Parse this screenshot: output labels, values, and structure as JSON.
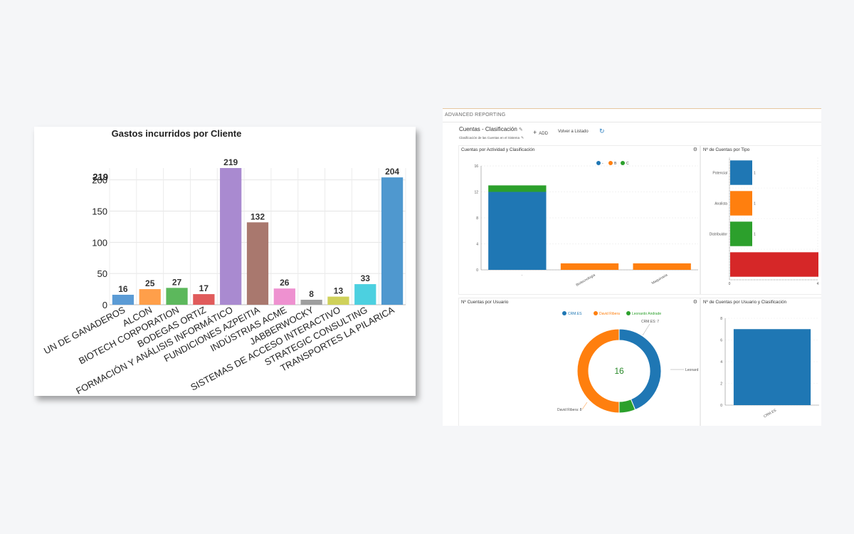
{
  "left_chart": {
    "chart_data": {
      "type": "bar",
      "title": "Gastos incurridos por Cliente",
      "categories": [
        "UN DE GANADEROS",
        "ALCON",
        "BIOTECH CORPORATION",
        "BODEGAS ORTIZ",
        "FORMACIÓN Y ANÁLISIS INFORMÁTICO",
        "FUNDICIONES AZPEITIA",
        "INDÚSTRIAS ACME",
        "JABBERWOCKY",
        "SISTEMAS DE ACCESO INTERACTIVO",
        "STRATEGIC CONSULTING",
        "TRANSPORTES LA PILARICA"
      ],
      "values": [
        16,
        25,
        27,
        17,
        219,
        132,
        26,
        8,
        13,
        33,
        204
      ],
      "value_labels": [
        "16",
        "25",
        "27",
        "17",
        "219",
        "132",
        "26",
        "8",
        "13",
        "33",
        "204"
      ],
      "colors": [
        "#5b9bd5",
        "#ff9f4a",
        "#5cb85c",
        "#e05b5b",
        "#a98ad0",
        "#a9786e",
        "#ee91d0",
        "#9e9e9e",
        "#cfd15a",
        "#4cd0e0",
        "#4f98cf"
      ],
      "yticks": [
        "0",
        "50",
        "100",
        "150",
        "200"
      ],
      "ytick_values": [
        0,
        50,
        100,
        150,
        200
      ],
      "ymax_label": "219",
      "ylim": [
        0,
        219
      ],
      "grid": true
    }
  },
  "dashboard": {
    "header": "ADVANCED REPORTING",
    "title": "Cuentas - Clasificación",
    "subtitle": "Clasificación de las Cuentas en el Sistema",
    "add_label": "ADD",
    "back_label": "Volver a Listado",
    "panel1": {
      "title": "Cuentas por Actividad y Clasificación",
      "chart_data": {
        "type": "bar",
        "categories": [
          "-",
          "Biotecnologia",
          "Maquinaria"
        ],
        "series": [
          {
            "name": "-",
            "color": "#1f77b4",
            "values": [
              12,
              0,
              0
            ]
          },
          {
            "name": "B",
            "color": "#ff7f0e",
            "values": [
              0,
              1,
              1
            ]
          },
          {
            "name": "C",
            "color": "#2ca02c",
            "values": [
              1,
              0,
              0
            ]
          }
        ],
        "yticks": [
          "0",
          "4",
          "8",
          "12",
          "16"
        ],
        "ylim": [
          0,
          16
        ]
      }
    },
    "panel2": {
      "title": "Nº de Cuentas por Tipo",
      "chart_data": {
        "type": "bar",
        "orientation": "horizontal",
        "categories": [
          "Potencial",
          "Analista",
          "Distribuidor",
          ""
        ],
        "values": [
          1,
          1,
          1,
          4
        ],
        "value_labels": [
          "1",
          "1",
          "1",
          ""
        ],
        "colors": [
          "#1f77b4",
          "#ff7f0e",
          "#2ca02c",
          "#d62728"
        ],
        "xticks": [
          "0",
          "4"
        ],
        "xlim": [
          0,
          4
        ]
      }
    },
    "panel3": {
      "title": "Nº Cuentas por Usuario",
      "chart_data": {
        "type": "pie",
        "donut": true,
        "labels": [
          "CRM.ES",
          "David Ribera",
          "Leonardo Andrade"
        ],
        "values": [
          7,
          8,
          1
        ],
        "colors": [
          "#1f77b4",
          "#ff7f0e",
          "#2ca02c"
        ],
        "center_label": "16",
        "slice_labels": [
          "CRM.ES: 7",
          "David Ribera: 8",
          "Leonard"
        ]
      }
    },
    "panel4": {
      "title": "Nº de Cuentas por Usuario y Clasificación",
      "chart_data": {
        "type": "bar",
        "categories": [
          "CRM.ES"
        ],
        "values": [
          7
        ],
        "color": "#1f77b4",
        "yticks": [
          "0",
          "2",
          "4",
          "6",
          "8"
        ],
        "ylim": [
          0,
          8
        ]
      }
    }
  }
}
